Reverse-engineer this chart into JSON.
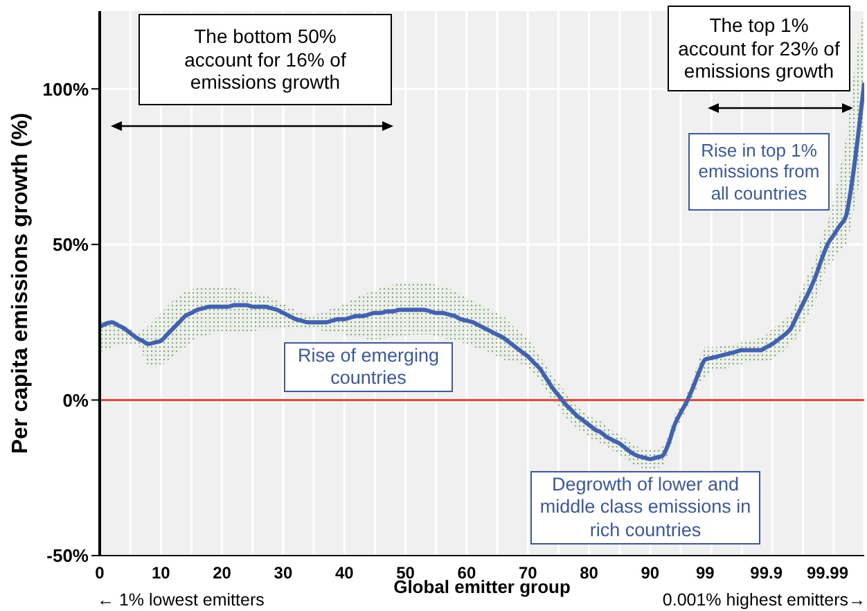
{
  "chart_data": {
    "type": "line",
    "xlabel": "Global emitter group",
    "ylabel": "Per capita emissions growth (%)",
    "categories": [
      "0",
      null,
      null,
      null,
      null,
      null,
      null,
      null,
      null,
      null,
      "10",
      null,
      null,
      null,
      null,
      null,
      null,
      null,
      null,
      null,
      "20",
      null,
      null,
      null,
      null,
      null,
      null,
      null,
      null,
      null,
      "30",
      null,
      null,
      null,
      null,
      null,
      null,
      null,
      null,
      null,
      "40",
      null,
      null,
      null,
      null,
      null,
      null,
      null,
      null,
      null,
      "50",
      null,
      null,
      null,
      null,
      null,
      null,
      null,
      null,
      null,
      "60",
      null,
      null,
      null,
      null,
      null,
      null,
      null,
      null,
      null,
      "70",
      null,
      null,
      null,
      null,
      null,
      null,
      null,
      null,
      null,
      "80",
      null,
      null,
      null,
      null,
      null,
      null,
      null,
      null,
      null,
      "90",
      null,
      null,
      null,
      null,
      null,
      null,
      null,
      null,
      "99",
      null,
      null,
      null,
      null,
      null,
      null,
      null,
      null,
      null,
      "99.9",
      null,
      null,
      null,
      null,
      null,
      null,
      null,
      null,
      null,
      "99.99",
      null,
      null,
      null,
      null,
      null,
      null
    ],
    "series": [
      {
        "color": "#4062b0",
        "values": [
          23.5,
          24.5,
          25,
          24,
          23,
          21.5,
          20,
          19,
          18,
          18.5,
          19,
          21,
          23,
          25,
          27,
          28,
          29,
          29.5,
          30,
          30,
          30,
          30,
          30.5,
          30.5,
          30.5,
          30,
          30,
          30,
          29.5,
          29,
          28,
          27,
          26,
          25.5,
          25,
          25,
          25,
          25,
          25.5,
          26,
          26,
          26.5,
          27,
          27,
          27.5,
          28,
          28,
          28.5,
          28.5,
          29,
          29,
          29,
          29,
          29,
          28.5,
          28,
          28,
          27.5,
          27,
          26,
          25.5,
          25,
          24,
          23,
          22,
          21,
          20,
          18.5,
          17,
          15.5,
          14,
          12,
          10,
          7,
          4,
          1.5,
          -1,
          -3,
          -5,
          -6.5,
          -8,
          -9.5,
          -10.5,
          -12,
          -13,
          -14,
          -15.5,
          -17,
          -18,
          -18.5,
          -19,
          -18.5,
          -18,
          -14,
          -8,
          -4,
          -0.5,
          4,
          9,
          13,
          13.5,
          14,
          14.5,
          15,
          15.5,
          16,
          16,
          16,
          16,
          17,
          18,
          19.5,
          21,
          23,
          27,
          31,
          35,
          39.5,
          45,
          50,
          53,
          56,
          59,
          70,
          85,
          102
        ],
        "lower": [
          15.5,
          16,
          17,
          17.5,
          18,
          18,
          18,
          15,
          11,
          10.5,
          11,
          12.5,
          14,
          15.5,
          17,
          18.5,
          20,
          20.5,
          21,
          21.5,
          22,
          22,
          22,
          22,
          22,
          22,
          22.5,
          22.5,
          22.5,
          23,
          23,
          23,
          23,
          23,
          23,
          23,
          22.5,
          22,
          22,
          21.5,
          21,
          20.5,
          20,
          20,
          19.5,
          19.5,
          19.5,
          20,
          20,
          20.5,
          20.5,
          21,
          21,
          21,
          21,
          20.5,
          20,
          19.5,
          19,
          18.5,
          18,
          17,
          16.5,
          16,
          15,
          14,
          13,
          12.5,
          12,
          11.5,
          10.5,
          8.5,
          6,
          3,
          0,
          -2.5,
          -5,
          -7,
          -9,
          -10.5,
          -12,
          -13,
          -14,
          -15,
          -16.5,
          -17.5,
          -19,
          -20.5,
          -21.5,
          -22,
          -22.5,
          -22,
          -21,
          -17,
          -11,
          -7,
          -3,
          1,
          5,
          7,
          9,
          9.5,
          10,
          10.5,
          11,
          11.5,
          12,
          12,
          12.5,
          12.5,
          13,
          14.5,
          16,
          18.5,
          20,
          24,
          28,
          32,
          38,
          43,
          45,
          48,
          50,
          58,
          68,
          80
        ],
        "upper": [
          25,
          25.5,
          25.5,
          25,
          24,
          23,
          22,
          22.5,
          24,
          26,
          28,
          30,
          32,
          33.5,
          35,
          35.5,
          36,
          36,
          36,
          36,
          36,
          36,
          36,
          35.5,
          35,
          34.5,
          34,
          33.5,
          33,
          32,
          31,
          30,
          29,
          28,
          27.5,
          27.5,
          28,
          28.5,
          29.5,
          30,
          31,
          32,
          33,
          34,
          34.5,
          35,
          36,
          36.5,
          37,
          37.5,
          38,
          38,
          38,
          38,
          37.5,
          37,
          36.5,
          36,
          35,
          34,
          33,
          32,
          31,
          30,
          29,
          28,
          27,
          25,
          23,
          21.5,
          20,
          17,
          14,
          11,
          8,
          5.5,
          3,
          0.5,
          -2,
          -3.5,
          -5,
          -6,
          -7,
          -8.5,
          -10,
          -11,
          -12.5,
          -14,
          -15,
          -15.5,
          -16,
          -15.5,
          -15,
          -11,
          -5,
          -1.5,
          2,
          7,
          13,
          17,
          17,
          17,
          17.5,
          17.5,
          18,
          18.5,
          19,
          19.5,
          20,
          21,
          23,
          24.5,
          26,
          27.5,
          32,
          36.5,
          41,
          45,
          52,
          57,
          64,
          74,
          84,
          100,
          115,
          125
        ]
      }
    ],
    "ylim": [
      -50,
      125
    ],
    "yticks": [
      {
        "value": -50,
        "label": "-50%"
      },
      {
        "value": 0,
        "label": "0%"
      },
      {
        "value": 50,
        "label": "50%"
      },
      {
        "value": 100,
        "label": "100%"
      }
    ],
    "grid": true,
    "ref_lines": [
      {
        "axis": "y",
        "value": 0,
        "color": "#e8473a"
      }
    ],
    "annotations": [
      "The bottom 50% account for 16% of emissions growth",
      "The top 1% account for 23% of emissions growth",
      "Rise of emerging countries",
      "Rise in top 1% emissions from all countries",
      "Degrowth of lower and middle class emissions in rich countries",
      "← 1% lowest emitters",
      "0.001% highest emitters→"
    ]
  }
}
